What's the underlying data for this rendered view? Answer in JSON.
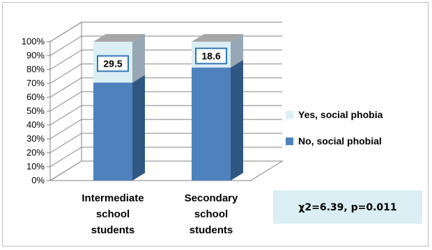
{
  "chart_data": {
    "type": "bar",
    "stacked": true,
    "three_d": true,
    "categories": [
      "Intermediate school students",
      "Secondary school students"
    ],
    "series": [
      {
        "name": "No, social phobial",
        "values": [
          70.5,
          81.4
        ],
        "color": "#4f81bd"
      },
      {
        "name": "Yes, social phobia",
        "values": [
          29.5,
          18.6
        ],
        "color": "#dbeef4"
      }
    ],
    "data_labels": [
      "29.5",
      "18.6"
    ],
    "y_ticks": [
      "0%",
      "10%",
      "20%",
      "30%",
      "40%",
      "50%",
      "60%",
      "70%",
      "80%",
      "90%",
      "100%"
    ],
    "ylim": [
      0,
      100
    ],
    "grid": true,
    "legend_position": "right",
    "annotation": "χ2=6.39, p=0.011",
    "label_border_color": "#2e75b6",
    "annotation_box_color": "#daeef3"
  }
}
